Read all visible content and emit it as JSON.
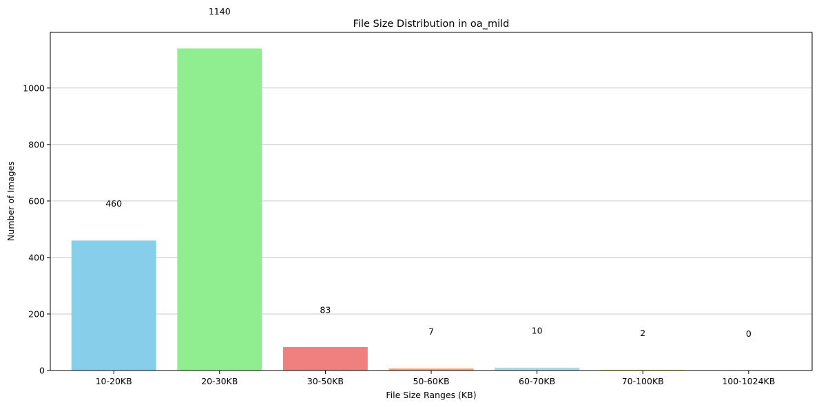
{
  "chart_data": {
    "type": "bar",
    "title": "File Size Distribution in oa_mild",
    "xlabel": "File Size Ranges (KB)",
    "ylabel": "Number of Images",
    "categories": [
      "10-20KB",
      "20-30KB",
      "30-50KB",
      "50-60KB",
      "60-70KB",
      "70-100KB",
      "100-1024KB"
    ],
    "values": [
      460,
      1140,
      83,
      7,
      10,
      2,
      0
    ],
    "value_labels": [
      "460",
      "1140",
      "83",
      "7",
      "10",
      "2",
      "0"
    ],
    "colors": [
      "#87ceeb",
      "#90ee90",
      "#f08080",
      "#ffa07a",
      "#add8e6",
      "#ffd700",
      "#dda0dd"
    ],
    "ylim": [
      0,
      1197
    ],
    "yticks": [
      0,
      200,
      400,
      600,
      800,
      1000
    ],
    "grid": "y"
  }
}
